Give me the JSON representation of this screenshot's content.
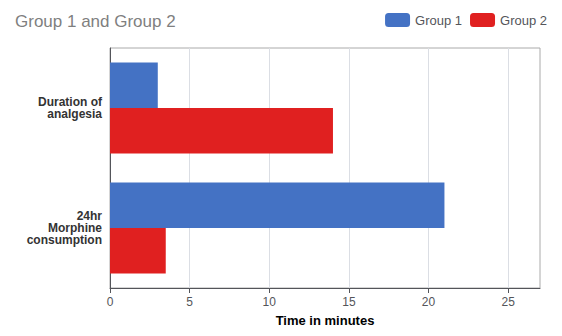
{
  "chart_data": {
    "type": "bar",
    "orientation": "horizontal",
    "title": "Group 1 and Group 2",
    "categories": [
      "Duration of\nanalgesia",
      "24hr\nMorphine\nconsumption"
    ],
    "series": [
      {
        "name": "Group 1",
        "color": "#4472C4",
        "values": [
          3,
          21
        ]
      },
      {
        "name": "Group 2",
        "color": "#E02020",
        "values": [
          14,
          3.5
        ]
      }
    ],
    "xlabel": "Time in minutes",
    "xlim": [
      0,
      27
    ],
    "xticks": [
      0,
      5,
      10,
      15,
      20,
      25
    ],
    "grid": true,
    "legend": "upper right"
  }
}
